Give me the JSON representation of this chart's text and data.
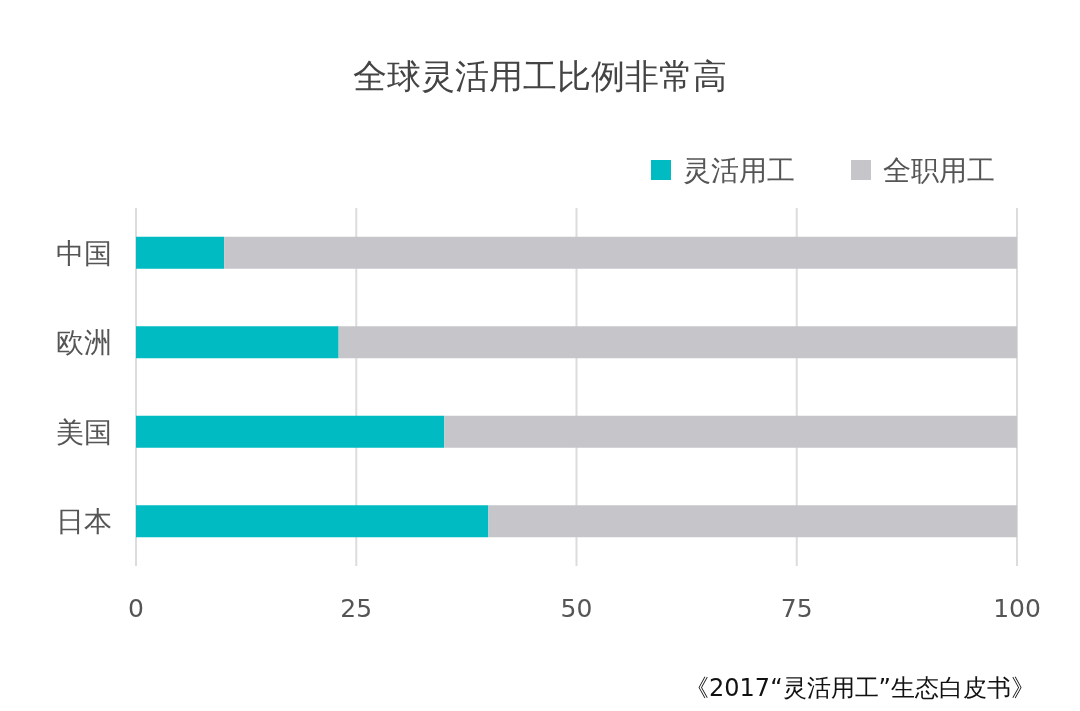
{
  "chart_data": {
    "type": "bar",
    "orientation": "horizontal",
    "stacked": true,
    "title": "全球灵活用工比例非常高",
    "categories": [
      "中国",
      "欧洲",
      "美国",
      "日本"
    ],
    "series": [
      {
        "name": "灵活用工",
        "color": "#00bcc2",
        "values": [
          10,
          23,
          35,
          40
        ]
      },
      {
        "name": "全职用工",
        "color": "#c6c5ca",
        "values": [
          90,
          77,
          65,
          60
        ]
      }
    ],
    "xlim": [
      0,
      100
    ],
    "xticks": [
      0,
      25,
      50,
      75,
      100
    ],
    "grid": "x",
    "legend": "top right",
    "annotations": [
      "《2017“灵活用工”生态白皮书》"
    ]
  }
}
